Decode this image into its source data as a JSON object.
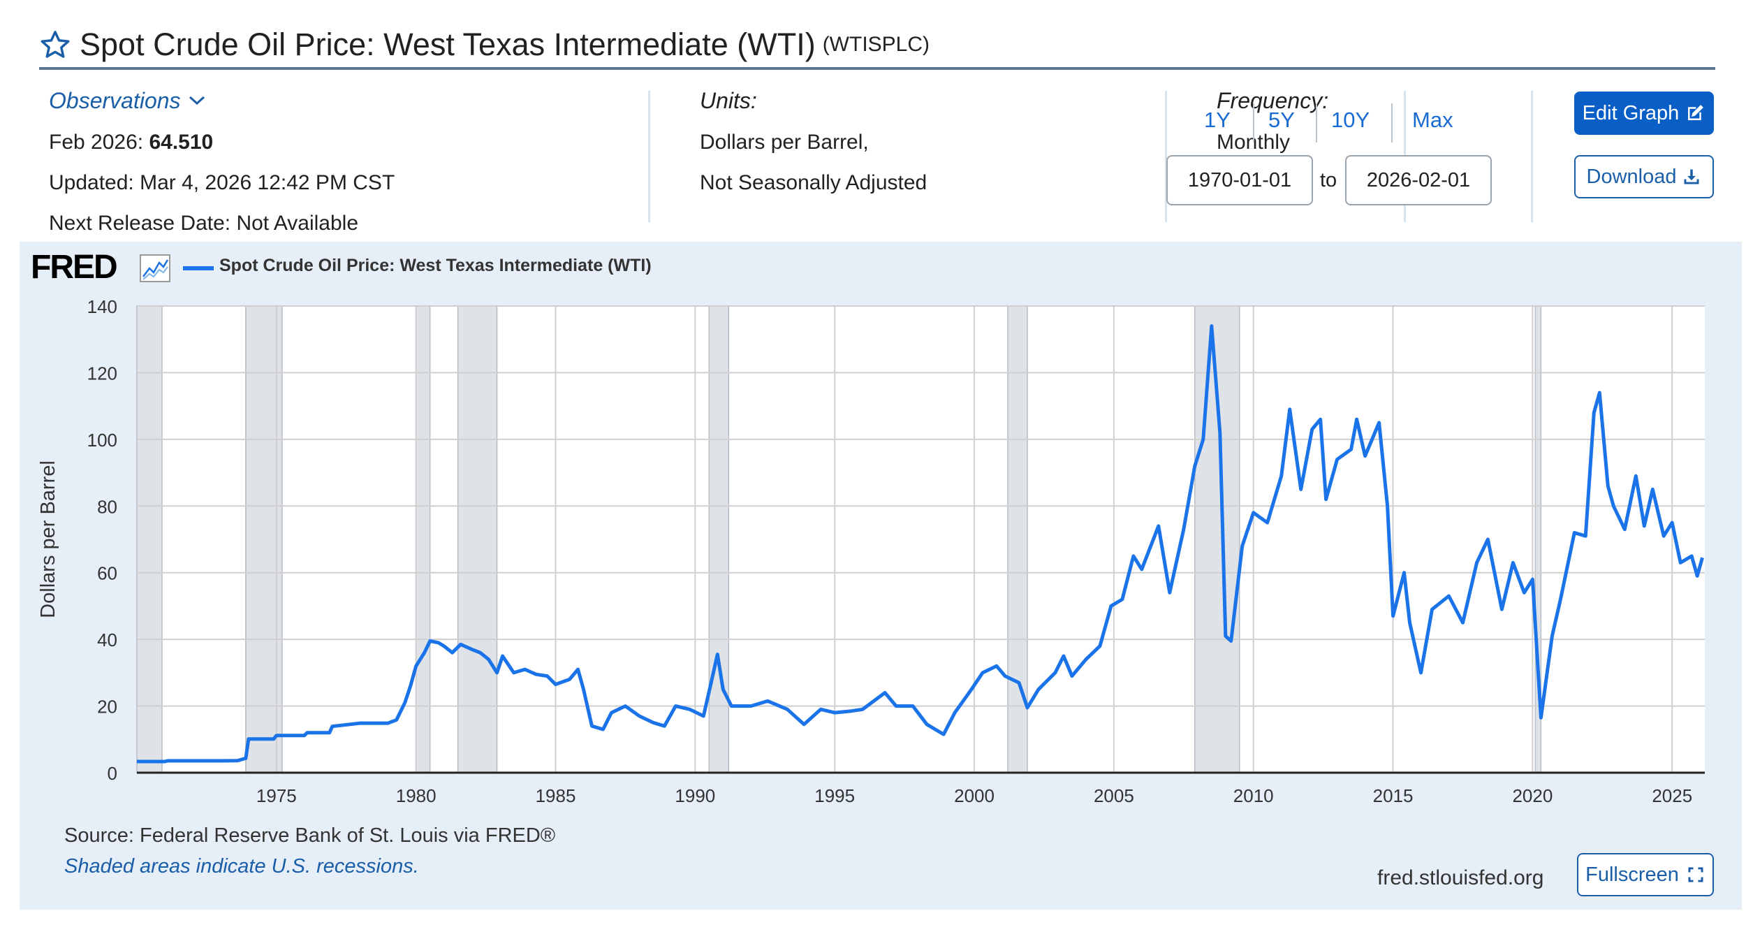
{
  "header": {
    "title": "Spot Crude Oil Price: West Texas Intermediate (WTI)",
    "series_id": "(WTISPLC)"
  },
  "observations": {
    "link_label": "Observations",
    "latest_label": "Feb 2026:",
    "latest_value": "64.510",
    "updated": "Updated: Mar 4, 2026 12:42 PM CST",
    "next_release": "Next Release Date: Not Available"
  },
  "units": {
    "label": "Units:",
    "line1": "Dollars per Barrel,",
    "line2": "Not Seasonally Adjusted"
  },
  "frequency": {
    "label": "Frequency:",
    "value": "Monthly"
  },
  "range": {
    "buttons": [
      "1Y",
      "5Y",
      "10Y",
      "Max"
    ],
    "start": "1970-01-01",
    "to_label": "to",
    "end": "2026-02-01"
  },
  "buttons": {
    "edit_graph": "Edit Graph",
    "download": "Download",
    "fullscreen": "Fullscreen"
  },
  "footer": {
    "source": "Source: Federal Reserve Bank of St. Louis via FRED®",
    "shaded_note": "Shaded areas indicate U.S. recessions.",
    "site": "fred.stlouisfed.org"
  },
  "logo_text": "FRED",
  "colors": {
    "line": "#1a73e8",
    "accent": "#0a5fc7",
    "panel": "#e6eef7",
    "recession": "#dfe3e8"
  },
  "chart_data": {
    "type": "line",
    "title": "Spot Crude Oil Price: West Texas Intermediate (WTI)",
    "legend": "Spot Crude Oil Price: West Texas Intermediate (WTI)",
    "ylabel": "Dollars per Barrel",
    "xlabel": "",
    "ylim": [
      0,
      140
    ],
    "xlim": [
      1970.0,
      2026.17
    ],
    "yticks": [
      0,
      20,
      40,
      60,
      80,
      100,
      120,
      140
    ],
    "xticks": [
      1975,
      1980,
      1985,
      1990,
      1995,
      2000,
      2005,
      2010,
      2015,
      2020,
      2025
    ],
    "grid": true,
    "recessions": [
      [
        1970.0,
        1970.9
      ],
      [
        1973.9,
        1975.2
      ],
      [
        1980.0,
        1980.5
      ],
      [
        1981.5,
        1982.9
      ],
      [
        1990.5,
        1991.2
      ],
      [
        2001.2,
        2001.9
      ],
      [
        2007.9,
        2009.5
      ],
      [
        2020.1,
        2020.3
      ]
    ],
    "series": [
      {
        "name": "Spot Crude Oil Price: West Texas Intermediate (WTI)",
        "points": [
          [
            1970.0,
            3.35
          ],
          [
            1971.0,
            3.35
          ],
          [
            1971.1,
            3.56
          ],
          [
            1973.0,
            3.56
          ],
          [
            1973.6,
            3.6
          ],
          [
            1973.9,
            4.31
          ],
          [
            1974.0,
            10.11
          ],
          [
            1974.9,
            10.11
          ],
          [
            1975.0,
            11.16
          ],
          [
            1976.0,
            11.16
          ],
          [
            1976.1,
            12.0
          ],
          [
            1976.9,
            12.0
          ],
          [
            1977.0,
            13.9
          ],
          [
            1978.0,
            14.85
          ],
          [
            1979.0,
            14.85
          ],
          [
            1979.3,
            15.85
          ],
          [
            1979.6,
            21.0
          ],
          [
            1979.8,
            26.0
          ],
          [
            1980.0,
            32.0
          ],
          [
            1980.3,
            36.0
          ],
          [
            1980.5,
            39.5
          ],
          [
            1980.8,
            39.0
          ],
          [
            1981.0,
            38.0
          ],
          [
            1981.3,
            36.0
          ],
          [
            1981.6,
            38.5
          ],
          [
            1982.0,
            37.0
          ],
          [
            1982.3,
            36.0
          ],
          [
            1982.6,
            34.0
          ],
          [
            1982.9,
            30.0
          ],
          [
            1983.1,
            35.0
          ],
          [
            1983.5,
            30.0
          ],
          [
            1983.9,
            31.0
          ],
          [
            1984.3,
            29.5
          ],
          [
            1984.7,
            29.0
          ],
          [
            1985.0,
            26.5
          ],
          [
            1985.5,
            28.0
          ],
          [
            1985.8,
            31.0
          ],
          [
            1986.0,
            25.0
          ],
          [
            1986.3,
            14.0
          ],
          [
            1986.7,
            13.0
          ],
          [
            1987.0,
            18.0
          ],
          [
            1987.5,
            20.0
          ],
          [
            1988.0,
            17.0
          ],
          [
            1988.5,
            15.0
          ],
          [
            1988.9,
            14.0
          ],
          [
            1989.3,
            20.0
          ],
          [
            1989.8,
            19.0
          ],
          [
            1990.3,
            17.0
          ],
          [
            1990.6,
            28.0
          ],
          [
            1990.8,
            35.5
          ],
          [
            1991.0,
            25.0
          ],
          [
            1991.3,
            20.0
          ],
          [
            1992.0,
            20.0
          ],
          [
            1992.6,
            21.5
          ],
          [
            1993.3,
            19.0
          ],
          [
            1993.9,
            14.5
          ],
          [
            1994.5,
            19.0
          ],
          [
            1995.0,
            18.0
          ],
          [
            1995.6,
            18.5
          ],
          [
            1996.0,
            19.0
          ],
          [
            1996.8,
            24.0
          ],
          [
            1997.2,
            20.0
          ],
          [
            1997.8,
            20.0
          ],
          [
            1998.3,
            14.5
          ],
          [
            1998.9,
            11.5
          ],
          [
            1999.3,
            18.0
          ],
          [
            1999.9,
            25.0
          ],
          [
            2000.3,
            30.0
          ],
          [
            2000.8,
            32.0
          ],
          [
            2001.1,
            29.0
          ],
          [
            2001.6,
            27.0
          ],
          [
            2001.9,
            19.5
          ],
          [
            2002.3,
            25.0
          ],
          [
            2002.9,
            30.0
          ],
          [
            2003.2,
            35.0
          ],
          [
            2003.5,
            29.0
          ],
          [
            2004.0,
            34.0
          ],
          [
            2004.5,
            38.0
          ],
          [
            2004.9,
            50.0
          ],
          [
            2005.3,
            52.0
          ],
          [
            2005.7,
            65.0
          ],
          [
            2006.0,
            61.0
          ],
          [
            2006.6,
            74.0
          ],
          [
            2007.0,
            54.0
          ],
          [
            2007.5,
            73.0
          ],
          [
            2007.9,
            92.0
          ],
          [
            2008.2,
            100.0
          ],
          [
            2008.5,
            134.0
          ],
          [
            2008.8,
            102.0
          ],
          [
            2009.0,
            41.0
          ],
          [
            2009.2,
            39.5
          ],
          [
            2009.6,
            68.0
          ],
          [
            2010.0,
            78.0
          ],
          [
            2010.5,
            75.0
          ],
          [
            2011.0,
            89.0
          ],
          [
            2011.3,
            109.0
          ],
          [
            2011.7,
            85.0
          ],
          [
            2012.1,
            103.0
          ],
          [
            2012.4,
            106.0
          ],
          [
            2012.6,
            82.0
          ],
          [
            2013.0,
            94.0
          ],
          [
            2013.5,
            97.0
          ],
          [
            2013.7,
            106.0
          ],
          [
            2014.0,
            95.0
          ],
          [
            2014.5,
            105.0
          ],
          [
            2014.8,
            80.0
          ],
          [
            2015.0,
            47.0
          ],
          [
            2015.4,
            60.0
          ],
          [
            2015.6,
            45.0
          ],
          [
            2016.0,
            30.0
          ],
          [
            2016.4,
            49.0
          ],
          [
            2017.0,
            53.0
          ],
          [
            2017.5,
            45.0
          ],
          [
            2018.0,
            63.0
          ],
          [
            2018.4,
            70.0
          ],
          [
            2018.9,
            49.0
          ],
          [
            2019.3,
            63.0
          ],
          [
            2019.7,
            54.0
          ],
          [
            2020.0,
            58.0
          ],
          [
            2020.3,
            16.5
          ],
          [
            2020.7,
            41.0
          ],
          [
            2021.0,
            52.0
          ],
          [
            2021.5,
            72.0
          ],
          [
            2021.9,
            71.0
          ],
          [
            2022.2,
            108.0
          ],
          [
            2022.4,
            114.0
          ],
          [
            2022.7,
            86.0
          ],
          [
            2022.9,
            80.0
          ],
          [
            2023.3,
            73.0
          ],
          [
            2023.7,
            89.0
          ],
          [
            2024.0,
            74.0
          ],
          [
            2024.3,
            85.0
          ],
          [
            2024.7,
            71.0
          ],
          [
            2025.0,
            75.0
          ],
          [
            2025.3,
            63.0
          ],
          [
            2025.7,
            65.0
          ],
          [
            2025.9,
            59.0
          ],
          [
            2026.083,
            64.51
          ]
        ]
      }
    ]
  }
}
